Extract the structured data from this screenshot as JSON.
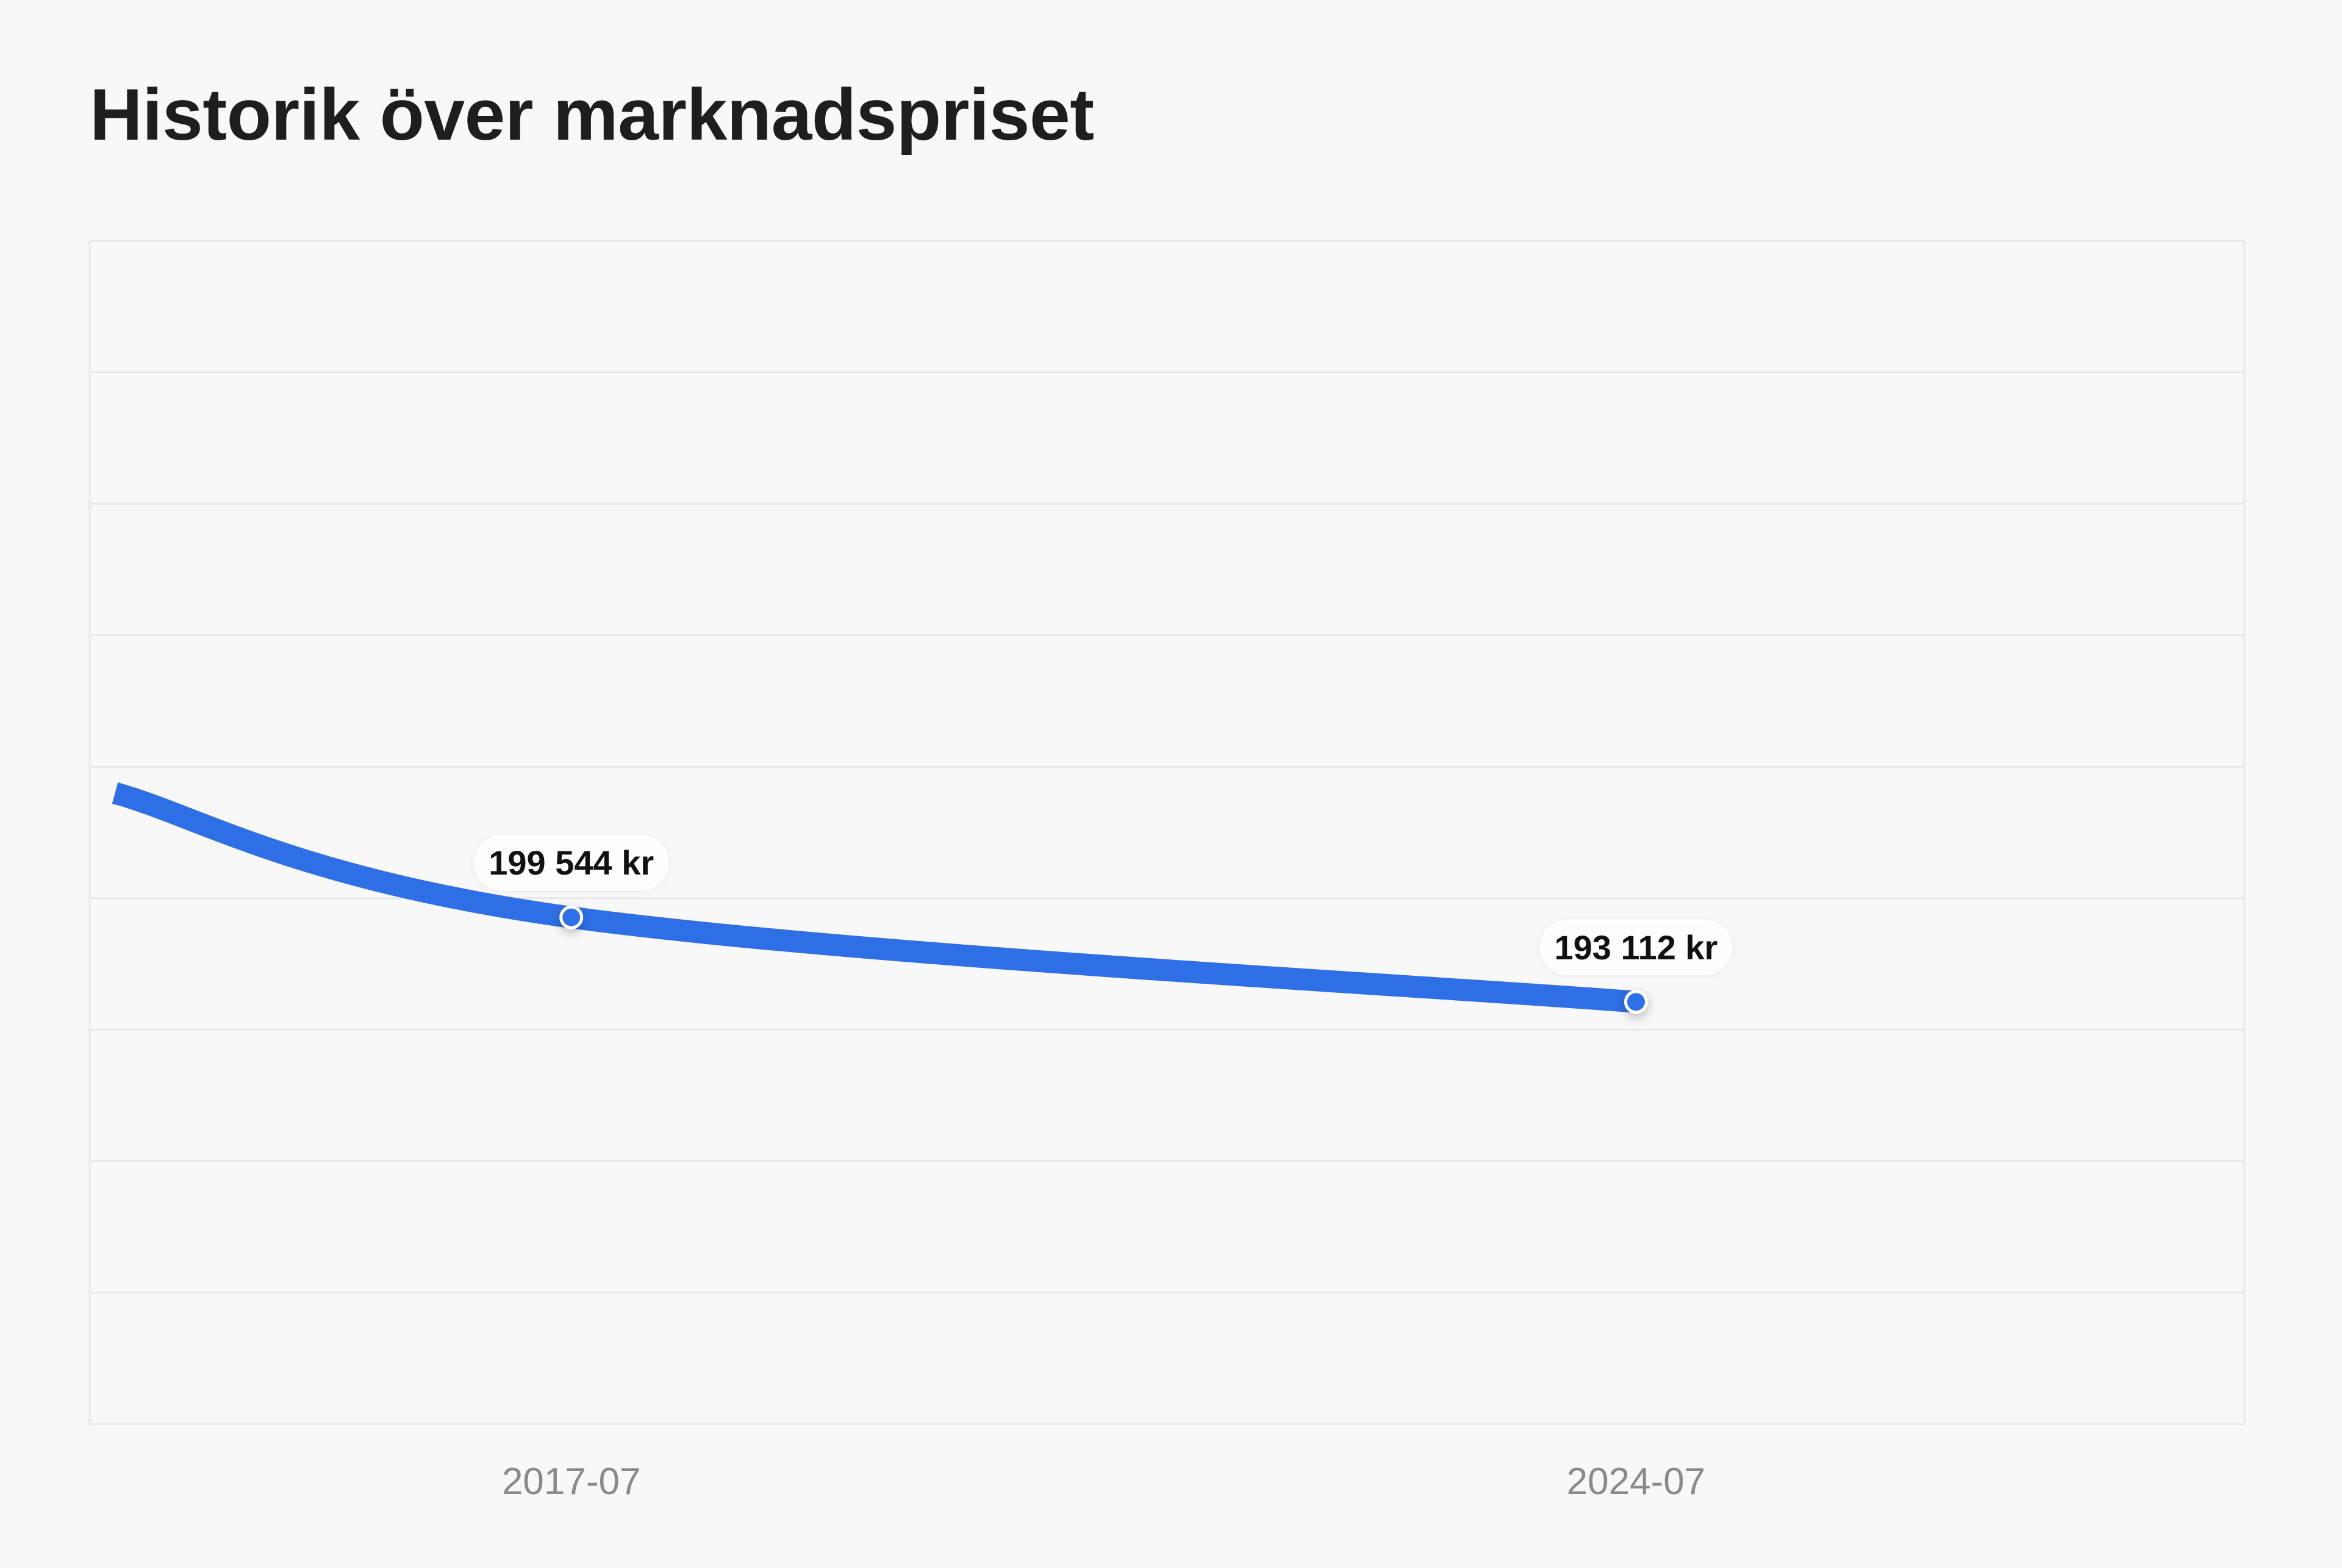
{
  "title": "Historik över marknadspriset",
  "colors": {
    "background": "#f8f8f8",
    "line": "#2f6fe6",
    "grid": "#e7e7e7",
    "tick_text": "#8a8a8a",
    "title_text": "#1e1e1e"
  },
  "chart_data": {
    "type": "line",
    "title": "",
    "xlabel": "",
    "ylabel": "",
    "x_tick_labels": [
      "2017-07",
      "2024-07"
    ],
    "series": [
      {
        "values": [
          {
            "x": "2014-07",
            "y": 209000
          },
          {
            "x": "2017-07",
            "y": 199544,
            "label": "199 544 kr"
          },
          {
            "x": "2024-07",
            "y": 193112,
            "label": "193 112 kr"
          }
        ]
      }
    ],
    "xlim": [
      "2014-05",
      "2028-07"
    ],
    "ylim": [
      161000,
      251000
    ],
    "grid": true,
    "legend": "none"
  }
}
